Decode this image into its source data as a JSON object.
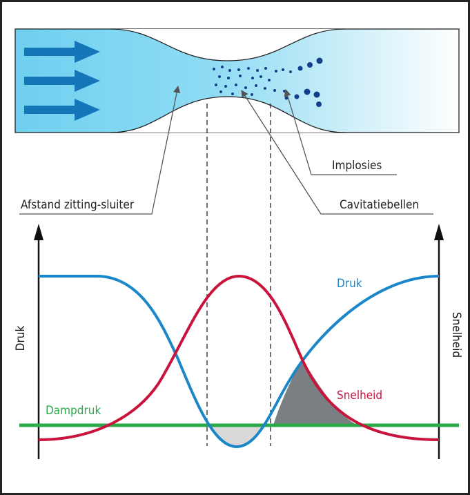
{
  "labels": {
    "implosions": "Implosies",
    "cavitation_bubbles": "Cavitatiebellen",
    "seat_gap": "Afstand zitting-sluiter",
    "pressure_curve": "Druk",
    "velocity_curve": "Snelheid",
    "vapor_pressure": "Dampdruk",
    "left_axis": "Druk",
    "right_axis": "Snelheid"
  },
  "colors": {
    "pressure": "#1b87c9",
    "velocity": "#c8143c",
    "vapor": "#2ba84a",
    "bubble": "#123f8c",
    "flow_arrow": "#1475b9",
    "fluid": "#6fd0ef",
    "cavitation_zone": "#d9d9d9",
    "implosion_zone": "#7a7f83"
  },
  "flow_arrows": 3,
  "bubbles": {
    "small": 28,
    "large": 8
  }
}
